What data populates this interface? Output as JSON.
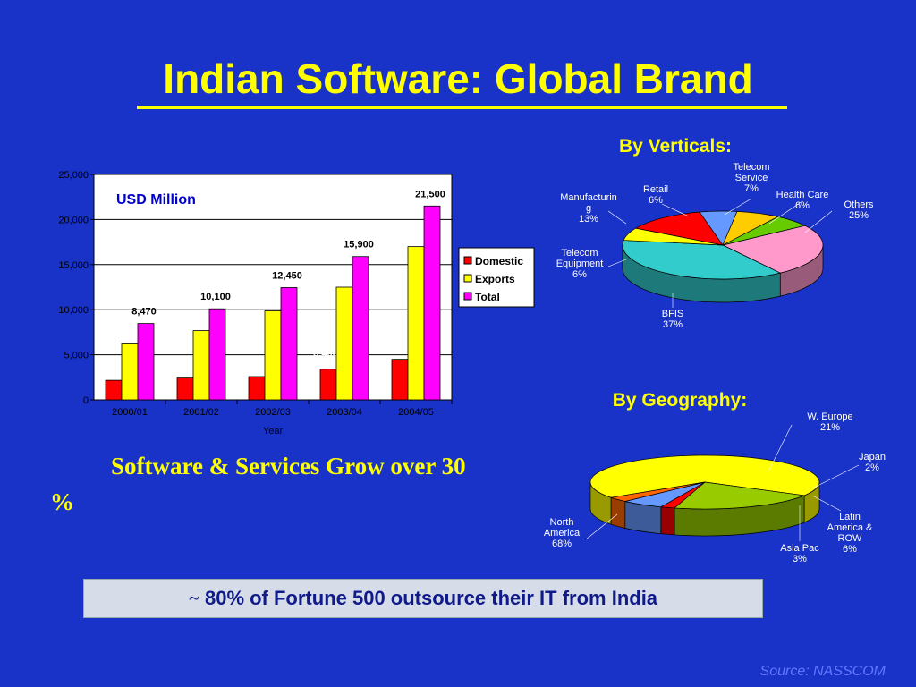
{
  "title": "Indian Software: Global Brand",
  "growth_text_line1": "Software & Services Grow over 30",
  "growth_text_line2": "%",
  "banner_tilde": "~",
  "banner_text": "80% of Fortune 500 outsource their IT from India",
  "source": "Source: NASSCOM",
  "verticals_heading": "By Verticals:",
  "geography_heading": "By Geography:",
  "colors": {
    "background": "#1932c8",
    "title": "#ffff00",
    "domestic": "#ff0000",
    "exports": "#ffff00",
    "total": "#ff00ff"
  },
  "chart_data": [
    {
      "type": "bar",
      "annotation": "USD Million",
      "xlabel": "Year",
      "ylabel": "",
      "ylim": [
        0,
        25000
      ],
      "yticks": [
        "0",
        "5,000",
        "10,000",
        "15,000",
        "20,000",
        "25,000"
      ],
      "categories": [
        "2000/01",
        "2001/02",
        "2002/03",
        "2003/04",
        "2004/05"
      ],
      "series": [
        {
          "name": "Domestic",
          "color": "#ff0000",
          "values": [
            2170,
            2420,
            2580,
            3400,
            4500
          ],
          "labels": [
            "2,170",
            "2,420",
            "2,580",
            "3,400",
            "4,500"
          ]
        },
        {
          "name": "Exports",
          "color": "#ffff00",
          "values": [
            6300,
            7680,
            9870,
            12500,
            17000
          ],
          "labels": [
            "6,300",
            "7,680",
            "9,870",
            "12,500",
            "17,000"
          ]
        },
        {
          "name": "Total",
          "color": "#ff00ff",
          "values": [
            8470,
            10100,
            12450,
            15900,
            21500
          ],
          "labels": [
            "8,470",
            "10,100",
            "12,450",
            "15,900",
            "21,500"
          ]
        }
      ],
      "legend": "right"
    },
    {
      "type": "pie",
      "title": "By Verticals:",
      "slices": [
        {
          "label": "Others",
          "value": 25,
          "pct": "25%",
          "color": "#ff99cc"
        },
        {
          "label": "BFIS",
          "value": 37,
          "pct": "37%",
          "color": "#33cccc"
        },
        {
          "label": "Telecom Equipment",
          "value": 6,
          "pct": "6%",
          "color": "#ffff00"
        },
        {
          "label": "Manufacturing",
          "value": 13,
          "pct": "13%",
          "color": "#ff0000"
        },
        {
          "label": "Retail",
          "value": 6,
          "pct": "6%",
          "color": "#6699ff"
        },
        {
          "label": "Telecom Service",
          "value": 7,
          "pct": "7%",
          "color": "#ffcc00"
        },
        {
          "label": "Health Care",
          "value": 6,
          "pct": "6%",
          "color": "#66cc00"
        }
      ]
    },
    {
      "type": "pie",
      "title": "By Geography:",
      "slices": [
        {
          "label": "North America",
          "value": 68,
          "pct": "68%",
          "color": "#ffff00"
        },
        {
          "label": "W. Europe",
          "value": 21,
          "pct": "21%",
          "color": "#99cc00"
        },
        {
          "label": "Japan",
          "value": 2,
          "pct": "2%",
          "color": "#ff0000"
        },
        {
          "label": "Latin America & ROW",
          "value": 6,
          "pct": "6%",
          "color": "#6699ff"
        },
        {
          "label": "Asia Pac",
          "value": 3,
          "pct": "3%",
          "color": "#ff6600"
        }
      ]
    }
  ]
}
